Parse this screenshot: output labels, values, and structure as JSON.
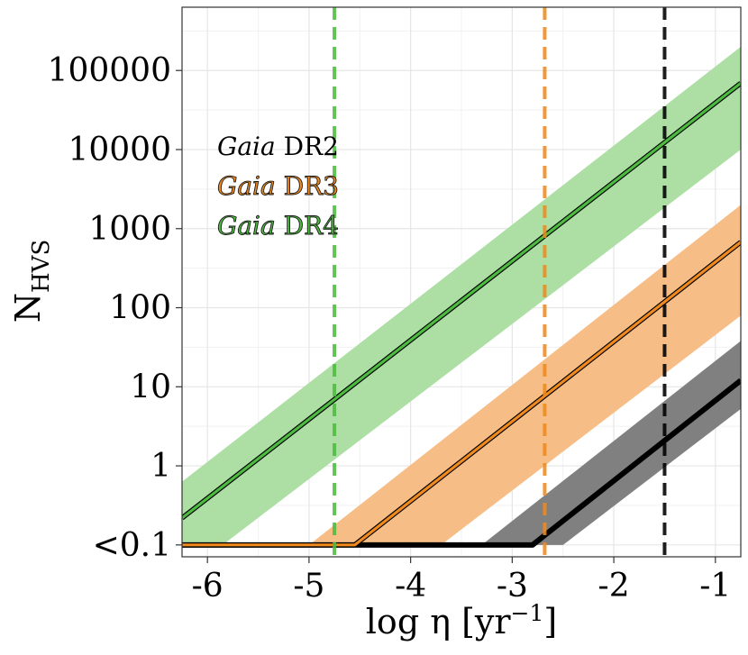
{
  "chart_data": {
    "type": "line",
    "title": "",
    "xlabel": "log η [yr",
    "xlabel_sup": "−1",
    "xlabel_close": "]",
    "ylabel": "N",
    "ylabel_sub": "HVS",
    "xlim": [
      -6.25,
      -0.75
    ],
    "ylim_log10": [
      -1.15,
      5.8
    ],
    "yscale": "log",
    "grid": true,
    "x_ticks": [
      -6,
      -5,
      -4,
      -3,
      -2,
      -1
    ],
    "x_tick_labels": [
      "-6",
      "-5",
      "-4",
      "-3",
      "-2",
      "-1"
    ],
    "y_ticks_log10": [
      -1,
      0,
      1,
      2,
      3,
      4,
      5
    ],
    "y_tick_labels": [
      "<0.1",
      "1",
      "10",
      "100",
      "1000",
      "10000",
      "100000"
    ],
    "series": [
      {
        "name": "Gaia DR2",
        "color": "#000000",
        "band_color": "#808080",
        "x": [
          -6.25,
          -2.8,
          -0.75
        ],
        "log10_y": [
          -1.0,
          -1.0,
          1.08
        ],
        "band_lower_log10": [
          [
            -6.25,
            -1.0
          ],
          [
            -2.5,
            -1.0
          ],
          [
            -0.75,
            0.72
          ]
        ],
        "band_upper_log10": [
          [
            -6.25,
            -1.0
          ],
          [
            -3.3,
            -1.0
          ],
          [
            -0.75,
            1.58
          ]
        ],
        "vline_x": -1.5
      },
      {
        "name": "Gaia DR3",
        "color": "#f08a1c",
        "band_color": "#f7bd86",
        "x": [
          -6.25,
          -4.55,
          -0.75
        ],
        "log10_y": [
          -1.0,
          -1.0,
          2.83
        ],
        "band_lower_log10": [
          [
            -6.25,
            -1.0
          ],
          [
            -3.7,
            -1.0
          ],
          [
            -0.75,
            1.9
          ]
        ],
        "band_upper_log10": [
          [
            -6.25,
            -1.0
          ],
          [
            -5.0,
            -1.0
          ],
          [
            -0.75,
            3.3
          ]
        ],
        "vline_x": -2.68
      },
      {
        "name": "Gaia DR4",
        "color": "#4dbb3f",
        "band_color": "#addfa5",
        "x": [
          -6.25,
          -0.75
        ],
        "log10_y": [
          -0.66,
          4.84
        ],
        "band_lower_log10": [
          [
            -6.25,
            -1.0
          ],
          [
            -5.85,
            -1.0
          ],
          [
            -0.75,
            4.0
          ]
        ],
        "band_upper_log10": [
          [
            -6.25,
            -0.2
          ],
          [
            -0.75,
            5.3
          ]
        ],
        "vline_x": -4.75
      }
    ],
    "legend": {
      "placement": "upper-left",
      "entries": [
        {
          "italic": "Gaia",
          "rest": " DR2",
          "color": "#000000",
          "outline": false
        },
        {
          "italic": "Gaia",
          "rest": " DR3",
          "color": "#f08a1c",
          "outline": true
        },
        {
          "italic": "Gaia",
          "rest": " DR4",
          "color": "#4dbb3f",
          "outline": true
        }
      ]
    }
  }
}
